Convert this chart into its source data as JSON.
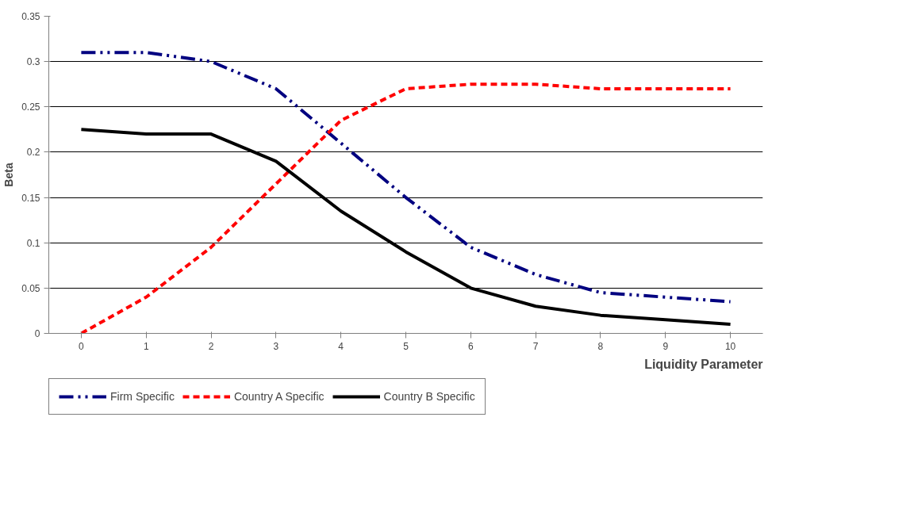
{
  "chart_data": {
    "type": "line",
    "xlabel": "Liquidity Parameter",
    "ylabel": "Beta",
    "x": [
      0,
      1,
      2,
      3,
      4,
      5,
      6,
      7,
      8,
      9,
      10
    ],
    "xlim": [
      -0.5,
      10.5
    ],
    "xticks": [
      0,
      1,
      2,
      3,
      4,
      5,
      6,
      7,
      8,
      9,
      10
    ],
    "ylim": [
      0,
      0.35
    ],
    "yticks": [
      0,
      0.05,
      0.1,
      0.15,
      0.2,
      0.25,
      0.3,
      0.35
    ],
    "grid": "y",
    "legend": "bottom",
    "marker": "none",
    "series": [
      {
        "name": "Firm Specific",
        "color": "#000080",
        "line_style": "dashdot",
        "values": [
          0.31,
          0.31,
          0.3,
          0.27,
          0.21,
          0.15,
          0.095,
          0.065,
          0.045,
          0.04,
          0.035
        ]
      },
      {
        "name": "Country A Specific",
        "color": "#ff0000",
        "line_style": "dashed",
        "values": [
          0,
          0.04,
          0.095,
          0.165,
          0.235,
          0.27,
          0.275,
          0.275,
          0.27,
          0.27,
          0.27
        ]
      },
      {
        "name": "Country B Specific",
        "color": "#000000",
        "line_style": "solid",
        "values": [
          0.225,
          0.22,
          0.22,
          0.19,
          0.135,
          0.09,
          0.05,
          0.03,
          0.02,
          0.015,
          0.01
        ]
      }
    ]
  }
}
